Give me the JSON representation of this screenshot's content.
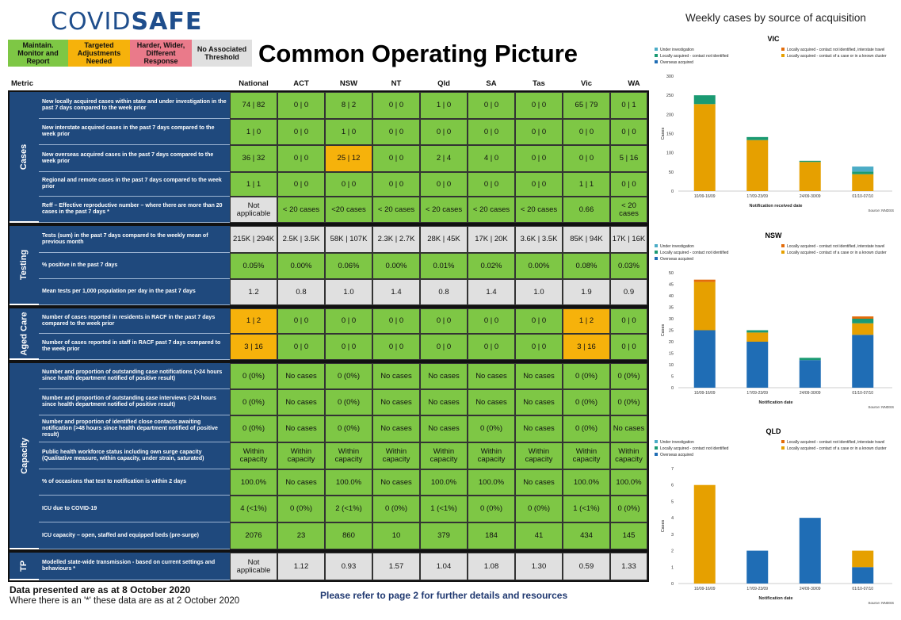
{
  "header": {
    "logo_part1": "COVID",
    "logo_part2": "SAFE",
    "title": "Common Operating Picture",
    "legend": [
      {
        "label": "Maintain. Monitor and Report",
        "color": "#7ec745"
      },
      {
        "label": "Targeted Adjustments Needed",
        "color": "#f6b20b"
      },
      {
        "label": "Harder, Wider, Different Response",
        "color": "#ea7a8a"
      },
      {
        "label": "No Associated Threshold",
        "color": "#e0e0e0"
      }
    ]
  },
  "table": {
    "metric_header": "Metric",
    "columns": [
      "National",
      "ACT",
      "NSW",
      "NT",
      "Qld",
      "SA",
      "Tas",
      "Vic",
      "WA"
    ],
    "groups": [
      {
        "name": "Cases",
        "rows": 5
      },
      {
        "name": "Testing",
        "rows": 3
      },
      {
        "name": "Aged Care",
        "rows": 2
      },
      {
        "name": "Capacity",
        "rows": 7
      },
      {
        "name": "TP",
        "rows": 1
      }
    ],
    "rows": [
      {
        "metric": "New locally acquired cases within state and under investigation in the past 7 days compared to the week prior",
        "cells": [
          [
            "74 | 82",
            "g"
          ],
          [
            "0 | 0",
            "g"
          ],
          [
            "8 | 2",
            "g"
          ],
          [
            "0 | 0",
            "g"
          ],
          [
            "1 | 0",
            "g"
          ],
          [
            "0 | 0",
            "g"
          ],
          [
            "0 | 0",
            "g"
          ],
          [
            "65 | 79",
            "g"
          ],
          [
            "0 | 1",
            "g"
          ]
        ]
      },
      {
        "metric": "New interstate acquired cases in the past 7 days compared to the week prior",
        "cells": [
          [
            "1 | 0",
            "g"
          ],
          [
            "0 | 0",
            "g"
          ],
          [
            "1 | 0",
            "g"
          ],
          [
            "0 | 0",
            "g"
          ],
          [
            "0 | 0",
            "g"
          ],
          [
            "0 | 0",
            "g"
          ],
          [
            "0 | 0",
            "g"
          ],
          [
            "0 | 0",
            "g"
          ],
          [
            "0 | 0",
            "g"
          ]
        ]
      },
      {
        "metric": "New overseas acquired cases in the past 7 days compared to the week prior",
        "cells": [
          [
            "36 | 32",
            "g"
          ],
          [
            "0 | 0",
            "g"
          ],
          [
            "25 | 12",
            "a"
          ],
          [
            "0 | 0",
            "g"
          ],
          [
            "2 | 4",
            "g"
          ],
          [
            "4 | 0",
            "g"
          ],
          [
            "0 | 0",
            "g"
          ],
          [
            "0 | 0",
            "g"
          ],
          [
            "5 | 16",
            "g"
          ]
        ]
      },
      {
        "metric": "Regional and remote cases in the past 7 days compared to the week prior",
        "cells": [
          [
            "1 | 1",
            "g"
          ],
          [
            "0 | 0",
            "g"
          ],
          [
            "0 | 0",
            "g"
          ],
          [
            "0 | 0",
            "g"
          ],
          [
            "0 | 0",
            "g"
          ],
          [
            "0 | 0",
            "g"
          ],
          [
            "0 | 0",
            "g"
          ],
          [
            "1 | 1",
            "g"
          ],
          [
            "0 | 0",
            "g"
          ]
        ]
      },
      {
        "metric": "Reff – Effective reproductive number – where there are more than 20 cases in the past 7 days *",
        "cells": [
          [
            "Not applicable",
            "y"
          ],
          [
            "< 20 cases",
            "g"
          ],
          [
            "<20 cases",
            "g"
          ],
          [
            "< 20 cases",
            "g"
          ],
          [
            "< 20 cases",
            "g"
          ],
          [
            "< 20 cases",
            "g"
          ],
          [
            "< 20 cases",
            "g"
          ],
          [
            "0.66",
            "g"
          ],
          [
            "< 20 cases",
            "g"
          ]
        ]
      },
      {
        "metric": "Tests (sum) in the past 7 days compared to the weekly mean of previous month",
        "cells": [
          [
            "215K | 294K",
            "y"
          ],
          [
            "2.5K | 3.5K",
            "y"
          ],
          [
            "58K | 107K",
            "y"
          ],
          [
            "2.3K | 2.7K",
            "y"
          ],
          [
            "28K | 45K",
            "y"
          ],
          [
            "17K | 20K",
            "y"
          ],
          [
            "3.6K | 3.5K",
            "y"
          ],
          [
            "85K | 94K",
            "y"
          ],
          [
            "17K | 16K",
            "y"
          ]
        ]
      },
      {
        "metric": "% positive in the past 7 days",
        "cells": [
          [
            "0.05%",
            "g"
          ],
          [
            "0.00%",
            "g"
          ],
          [
            "0.06%",
            "g"
          ],
          [
            "0.00%",
            "g"
          ],
          [
            "0.01%",
            "g"
          ],
          [
            "0.02%",
            "g"
          ],
          [
            "0.00%",
            "g"
          ],
          [
            "0.08%",
            "g"
          ],
          [
            "0.03%",
            "g"
          ]
        ]
      },
      {
        "metric": "Mean tests per 1,000 population per day in the past 7 days",
        "cells": [
          [
            "1.2",
            "y"
          ],
          [
            "0.8",
            "y"
          ],
          [
            "1.0",
            "y"
          ],
          [
            "1.4",
            "y"
          ],
          [
            "0.8",
            "y"
          ],
          [
            "1.4",
            "y"
          ],
          [
            "1.0",
            "y"
          ],
          [
            "1.9",
            "y"
          ],
          [
            "0.9",
            "y"
          ]
        ]
      },
      {
        "metric": "Number of cases reported in residents in RACF in the past 7 days compared to the week prior",
        "cells": [
          [
            "1 | 2",
            "a"
          ],
          [
            "0 | 0",
            "g"
          ],
          [
            "0 | 0",
            "g"
          ],
          [
            "0 | 0",
            "g"
          ],
          [
            "0 | 0",
            "g"
          ],
          [
            "0 | 0",
            "g"
          ],
          [
            "0 | 0",
            "g"
          ],
          [
            "1 | 2",
            "a"
          ],
          [
            "0 | 0",
            "g"
          ]
        ]
      },
      {
        "metric": "Number of cases reported in staff in RACF past 7 days compared to the week prior",
        "cells": [
          [
            "3 | 16",
            "a"
          ],
          [
            "0 | 0",
            "g"
          ],
          [
            "0 | 0",
            "g"
          ],
          [
            "0 | 0",
            "g"
          ],
          [
            "0 | 0",
            "g"
          ],
          [
            "0 | 0",
            "g"
          ],
          [
            "0 | 0",
            "g"
          ],
          [
            "3 | 16",
            "a"
          ],
          [
            "0 | 0",
            "g"
          ]
        ]
      },
      {
        "metric": "Number and proportion of outstanding case notifications (>24 hours since health department notified of positive result)",
        "cells": [
          [
            "0 (0%)",
            "g"
          ],
          [
            "No cases",
            "g"
          ],
          [
            "0 (0%)",
            "g"
          ],
          [
            "No cases",
            "g"
          ],
          [
            "No cases",
            "g"
          ],
          [
            "No cases",
            "g"
          ],
          [
            "No cases",
            "g"
          ],
          [
            "0 (0%)",
            "g"
          ],
          [
            "0 (0%)",
            "g"
          ]
        ]
      },
      {
        "metric": "Number and proportion of outstanding case interviews (>24 hours since health department notified of positive result)",
        "cells": [
          [
            "0 (0%)",
            "g"
          ],
          [
            "No cases",
            "g"
          ],
          [
            "0 (0%)",
            "g"
          ],
          [
            "No cases",
            "g"
          ],
          [
            "No cases",
            "g"
          ],
          [
            "No cases",
            "g"
          ],
          [
            "No cases",
            "g"
          ],
          [
            "0 (0%)",
            "g"
          ],
          [
            "0 (0%)",
            "g"
          ]
        ]
      },
      {
        "metric": "Number and proportion of identified close contacts awaiting notification (>48 hours since health department notified of positive result)",
        "cells": [
          [
            "0 (0%)",
            "g"
          ],
          [
            "No cases",
            "g"
          ],
          [
            "0 (0%)",
            "g"
          ],
          [
            "No cases",
            "g"
          ],
          [
            "No cases",
            "g"
          ],
          [
            "0 (0%)",
            "g"
          ],
          [
            "No cases",
            "g"
          ],
          [
            "0 (0%)",
            "g"
          ],
          [
            "No cases",
            "g"
          ]
        ]
      },
      {
        "metric": "Public health workforce status including own surge capacity (Qualitative measure, within capacity, under strain, saturated)",
        "cells": [
          [
            "Within capacity",
            "g"
          ],
          [
            "Within capacity",
            "g"
          ],
          [
            "Within capacity",
            "g"
          ],
          [
            "Within capacity",
            "g"
          ],
          [
            "Within capacity",
            "g"
          ],
          [
            "Within capacity",
            "g"
          ],
          [
            "Within capacity",
            "g"
          ],
          [
            "Within capacity",
            "g"
          ],
          [
            "Within capacity",
            "g"
          ]
        ]
      },
      {
        "metric": "% of occasions that test to notification is within 2 days",
        "cells": [
          [
            "100.0%",
            "g"
          ],
          [
            "No cases",
            "g"
          ],
          [
            "100.0%",
            "g"
          ],
          [
            "No cases",
            "g"
          ],
          [
            "100.0%",
            "g"
          ],
          [
            "100.0%",
            "g"
          ],
          [
            "No cases",
            "g"
          ],
          [
            "100.0%",
            "g"
          ],
          [
            "100.0%",
            "g"
          ]
        ]
      },
      {
        "metric": "ICU due to COVID-19",
        "cells": [
          [
            "4 (<1%)",
            "g"
          ],
          [
            "0 (0%)",
            "g"
          ],
          [
            "2 (<1%)",
            "g"
          ],
          [
            "0 (0%)",
            "g"
          ],
          [
            "1 (<1%)",
            "g"
          ],
          [
            "0 (0%)",
            "g"
          ],
          [
            "0 (0%)",
            "g"
          ],
          [
            "1 (<1%)",
            "g"
          ],
          [
            "0 (0%)",
            "g"
          ]
        ]
      },
      {
        "metric": "ICU capacity – open, staffed and equipped beds (pre-surge)",
        "cells": [
          [
            "2076",
            "g"
          ],
          [
            "23",
            "g"
          ],
          [
            "860",
            "g"
          ],
          [
            "10",
            "g"
          ],
          [
            "379",
            "g"
          ],
          [
            "184",
            "g"
          ],
          [
            "41",
            "g"
          ],
          [
            "434",
            "g"
          ],
          [
            "145",
            "g"
          ]
        ]
      },
      {
        "metric": "Modelled state-wide transmission - based on current settings and behaviours *",
        "cells": [
          [
            "Not applicable",
            "y"
          ],
          [
            "1.12",
            "y"
          ],
          [
            "0.93",
            "y"
          ],
          [
            "1.57",
            "y"
          ],
          [
            "1.04",
            "y"
          ],
          [
            "1.08",
            "y"
          ],
          [
            "1.30",
            "y"
          ],
          [
            "0.59",
            "y"
          ],
          [
            "1.33",
            "y"
          ]
        ]
      }
    ]
  },
  "footer": {
    "as_at": "Data presented are as at 8 October 2020",
    "note": "Where there is an '*' these data are as at 2 October 2020",
    "refer": "Please refer to page 2 for further details and resources"
  },
  "charts_title": "Weekly cases by source of acquisition",
  "colors": {
    "Under investigation": "#4bacc6",
    "Locally acquired - contact not identified, interstate travel": "#e36c0a",
    "Locally acquired - contact not identified": "#1a9a72",
    "Locally acquired - contact of a case or in a known cluster": "#e6a000",
    "Overseas acquired": "#1f6db5"
  },
  "chart_data": [
    {
      "type": "bar",
      "stacked": true,
      "title": "VIC",
      "xlabel": "Notification received date",
      "ylabel": "Cases",
      "ylim": [
        0,
        300
      ],
      "yticks": [
        0,
        50,
        100,
        150,
        200,
        250,
        300
      ],
      "source": "Source: NNDSS",
      "categories": [
        "10/09-16/09",
        "17/09-23/09",
        "24/09-30/09",
        "01/10-07/10"
      ],
      "legend": [
        "Under investigation",
        "Locally acquired - contact not identified, interstate travel",
        "Locally acquired - contact not identified",
        "Locally acquired - contact of a case or in a known cluster",
        "Overseas acquired"
      ],
      "series": [
        {
          "name": "Locally acquired - contact of a case or in a known cluster",
          "values": [
            227,
            133,
            76,
            44
          ]
        },
        {
          "name": "Locally acquired - contact not identified",
          "values": [
            23,
            8,
            3,
            7
          ]
        },
        {
          "name": "Under investigation",
          "values": [
            0,
            0,
            0,
            13
          ]
        }
      ]
    },
    {
      "type": "bar",
      "stacked": true,
      "title": "NSW",
      "xlabel": "Notification date",
      "ylabel": "Cases",
      "ylim": [
        0,
        50
      ],
      "yticks": [
        0,
        5,
        10,
        15,
        20,
        25,
        30,
        35,
        40,
        45,
        50
      ],
      "source": "Source: NNDSS",
      "categories": [
        "10/09-16/09",
        "17/09-23/09",
        "24/09-30/09",
        "01/10-07/10"
      ],
      "legend": [
        "Under investigation",
        "Locally acquired - contact not identified, interstate travel",
        "Locally acquired - contact not identified",
        "Locally acquired - contact of a case or in a known cluster",
        "Overseas acquired"
      ],
      "series": [
        {
          "name": "Overseas acquired",
          "values": [
            25,
            20,
            12,
            23
          ]
        },
        {
          "name": "Locally acquired - contact of a case or in a known cluster",
          "values": [
            21,
            4,
            0,
            5
          ]
        },
        {
          "name": "Locally acquired - contact not identified",
          "values": [
            0,
            1,
            1,
            2
          ]
        },
        {
          "name": "Locally acquired - contact not identified, interstate travel",
          "values": [
            1,
            0,
            0,
            1
          ]
        }
      ]
    },
    {
      "type": "bar",
      "stacked": true,
      "title": "QLD",
      "xlabel": "Notification date",
      "ylabel": "Cases",
      "ylim": [
        0,
        7
      ],
      "yticks": [
        0,
        1,
        2,
        3,
        4,
        5,
        6,
        7
      ],
      "source": "Source: NNDSS",
      "categories": [
        "10/09-16/09",
        "17/09-23/09",
        "24/09-30/09",
        "01/10-07/10"
      ],
      "legend": [
        "Under investigation",
        "Locally acquired - contact not identified, interstate travel",
        "Locally acquired - contact not identified",
        "Locally acquired - contact of a case or in a known cluster",
        "Overseas acquired"
      ],
      "series": [
        {
          "name": "Overseas acquired",
          "values": [
            0,
            2,
            4,
            1
          ]
        },
        {
          "name": "Locally acquired - contact of a case or in a known cluster",
          "values": [
            6,
            0,
            0,
            1
          ]
        }
      ]
    }
  ]
}
